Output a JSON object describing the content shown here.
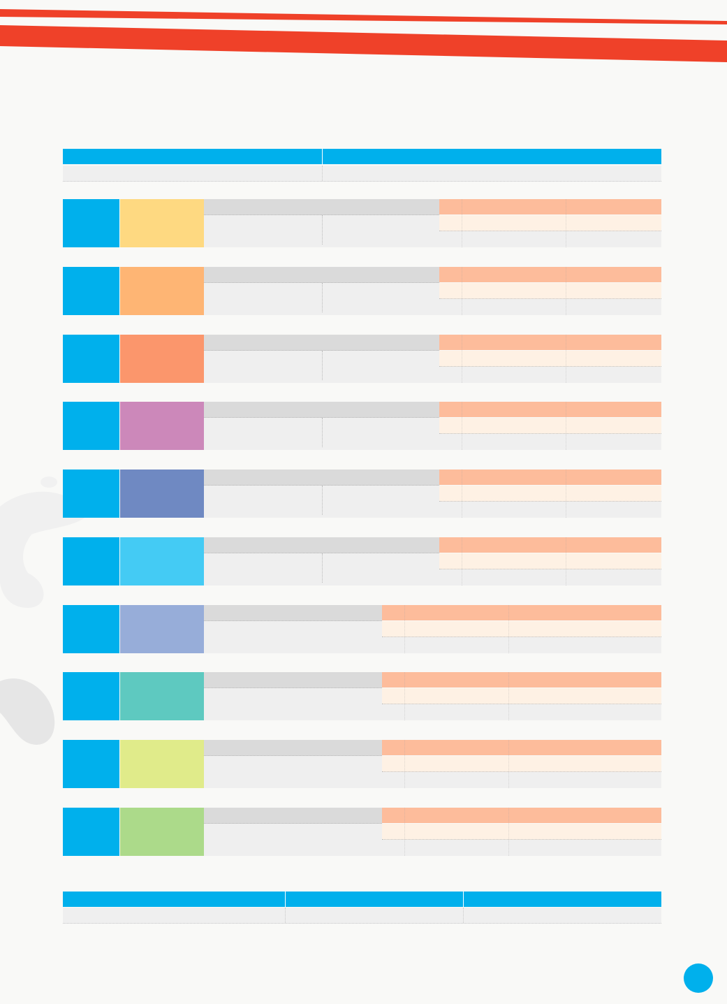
{
  "colors": {
    "accent": "#00b0ec",
    "stripe": "#ef4129",
    "header_peach": "#fdbc9b",
    "cell_cream": "#fef1e4",
    "cell_grey": "#efefef",
    "head_grey": "#dadada"
  },
  "top_table": {
    "header_cells": [
      "",
      ""
    ],
    "row_cells": [
      "",
      ""
    ]
  },
  "blocks": [
    {
      "swatch_color": "#fed981",
      "cells": [
        "",
        "",
        "",
        ""
      ]
    },
    {
      "swatch_color": "#feb574",
      "cells": [
        "",
        "",
        "",
        ""
      ]
    },
    {
      "swatch_color": "#fb966c",
      "cells": [
        "",
        "",
        "",
        ""
      ]
    },
    {
      "swatch_color": "#cc88ba",
      "cells": [
        "",
        "",
        "",
        ""
      ]
    },
    {
      "swatch_color": "#6f89c2",
      "cells": [
        "",
        "",
        "",
        ""
      ]
    },
    {
      "swatch_color": "#44cbf4",
      "cells": [
        "",
        "",
        "",
        ""
      ]
    },
    {
      "swatch_color": "#97add9",
      "cells": [
        "",
        "",
        "",
        ""
      ]
    },
    {
      "swatch_color": "#5ec9c0",
      "cells": [
        "",
        "",
        "",
        ""
      ]
    },
    {
      "swatch_color": "#e0eb8a",
      "cells": [
        "",
        "",
        "",
        ""
      ]
    },
    {
      "swatch_color": "#acda8a",
      "cells": [
        "",
        "",
        "",
        ""
      ]
    }
  ],
  "bottom_table": {
    "header_cells": [
      "",
      "",
      ""
    ],
    "row_cells": [
      "",
      "",
      ""
    ]
  },
  "page_number": ""
}
